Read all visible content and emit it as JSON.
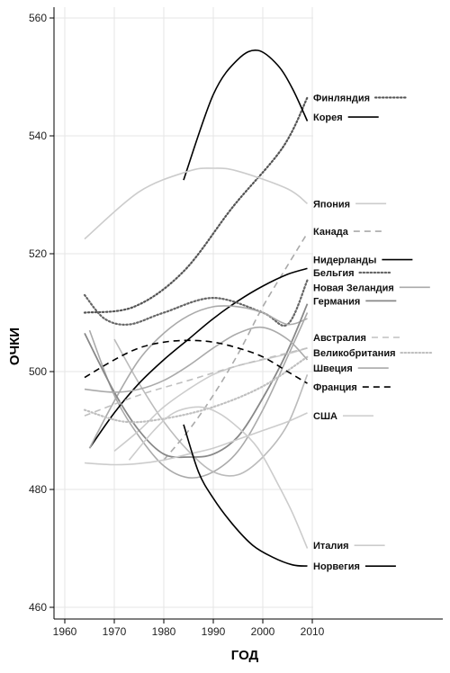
{
  "chart_data": {
    "type": "line",
    "xlabel": "ГОД",
    "ylabel": "ОЧКИ",
    "xlim": [
      1958,
      2010
    ],
    "ylim": [
      458,
      563
    ],
    "x_ticks": [
      1960,
      1970,
      1980,
      1990,
      2000,
      2010
    ],
    "y_ticks": [
      460,
      480,
      500,
      520,
      540,
      560
    ],
    "grid": true,
    "legend_placement": "right, labels at line ends",
    "series": [
      {
        "name": "Финляндия",
        "color": "#555555",
        "dash": "dotted",
        "width": 2.2,
        "x": [
          1964,
          1974,
          1984,
          1994,
          2004,
          2009
        ],
        "y": [
          510,
          511,
          517,
          528,
          538,
          546.5
        ]
      },
      {
        "name": "Корея",
        "color": "#000000",
        "dash": "solid",
        "width": 1.6,
        "x": [
          1984,
          1990,
          1995,
          1999,
          2003,
          2006,
          2009
        ],
        "y": [
          532.5,
          547,
          553,
          554.5,
          552,
          548,
          542.5
        ]
      },
      {
        "name": "Япония",
        "color": "#cccccc",
        "dash": "solid",
        "width": 1.6,
        "x": [
          1964,
          1975,
          1985,
          1990,
          1995,
          2005,
          2009
        ],
        "y": [
          522.5,
          530.5,
          534,
          534.5,
          534,
          531,
          528.5
        ]
      },
      {
        "name": "Канада",
        "color": "#aaaaaa",
        "dash": "dashed",
        "width": 1.6,
        "x": [
          1980,
          1985,
          1990,
          1995,
          2000,
          2005,
          2009
        ],
        "y": [
          485,
          490,
          496,
          503,
          511,
          518,
          523.5
        ]
      },
      {
        "name": "Нидерланды",
        "color": "#000000",
        "dash": "solid",
        "width": 1.6,
        "x": [
          1965,
          1970,
          1975,
          1980,
          1985,
          1990,
          1995,
          2000,
          2005,
          2009
        ],
        "y": [
          487,
          493,
          498,
          502,
          505.5,
          509,
          512,
          514.5,
          516.5,
          517.5
        ]
      },
      {
        "name": "Бельгия",
        "color": "#666666",
        "dash": "dotted",
        "width": 2.2,
        "x": [
          1964,
          1968,
          1973,
          1980,
          1990,
          2000,
          2005,
          2009
        ],
        "y": [
          513,
          509,
          508,
          510,
          512.5,
          510,
          508,
          515.5
        ]
      },
      {
        "name": "Новая Зеландия",
        "color": "#aaaaaa",
        "dash": "solid",
        "width": 1.6,
        "x": [
          1965,
          1970,
          1975,
          1980,
          1985,
          1990,
          1995,
          2000,
          2005,
          2009
        ],
        "y": [
          487,
          495,
          502,
          506.5,
          509.5,
          511,
          511,
          510,
          508,
          509
        ]
      },
      {
        "name": "Германия",
        "color": "#888888",
        "dash": "solid",
        "width": 1.8,
        "x": [
          1964,
          1970,
          1975,
          1980,
          1985,
          1990,
          1995,
          2000,
          2005,
          2009
        ],
        "y": [
          506.5,
          496.5,
          490,
          486,
          485.5,
          486,
          489,
          495.5,
          503.5,
          511.5
        ]
      },
      {
        "name": "Австралия",
        "color": "#c0c0c0",
        "dash": "dashed",
        "width": 1.6,
        "x": [
          1964,
          1975,
          1985,
          1995,
          2009
        ],
        "y": [
          492.5,
          496,
          498.5,
          501,
          504
        ]
      },
      {
        "name": "Великобритания",
        "color": "#c0c0c0",
        "dash": "dotted",
        "width": 2.2,
        "x": [
          1964,
          1972,
          1980,
          1990,
          2000,
          2009
        ],
        "y": [
          493.5,
          491.5,
          492,
          494,
          497.5,
          502.5
        ]
      },
      {
        "name": "Швеция",
        "color": "#aaaaaa",
        "dash": "solid",
        "width": 1.6,
        "x": [
          1964,
          1970,
          1975,
          1980,
          1985,
          1990,
          1995,
          2000,
          2005,
          2009
        ],
        "y": [
          497,
          496.5,
          497,
          498.5,
          501,
          504,
          506.5,
          507.5,
          505.5,
          502
        ]
      },
      {
        "name": "Франция",
        "color": "#000000",
        "dash": "dashed",
        "width": 1.6,
        "x": [
          1964,
          1970,
          1975,
          1980,
          1985,
          1990,
          1995,
          2000,
          2005,
          2009
        ],
        "y": [
          499,
          502,
          504,
          505,
          505.3,
          505,
          504,
          502.5,
          500,
          498
        ]
      },
      {
        "name": "США",
        "color": "#cccccc",
        "dash": "solid",
        "width": 1.6,
        "x": [
          1964,
          1970,
          1975,
          1980,
          1985,
          1990,
          1995,
          2000,
          2005,
          2009
        ],
        "y": [
          484.5,
          484.2,
          484.4,
          485,
          486,
          487,
          488.5,
          490,
          491.5,
          493
        ]
      },
      {
        "name": "Италия",
        "color": "#cccccc",
        "dash": "solid",
        "width": 1.6,
        "x": [
          1973,
          1978,
          1982,
          1987,
          1991,
          1995,
          1999,
          2003,
          2006,
          2009
        ],
        "y": [
          485,
          490,
          493,
          494,
          493,
          490.5,
          487,
          481,
          476,
          470
        ]
      },
      {
        "name": "Норвегия",
        "color": "#000000",
        "dash": "solid",
        "width": 1.6,
        "x": [
          1984,
          1987,
          1990,
          1994,
          1998,
          2002,
          2006,
          2009
        ],
        "y": [
          491,
          483,
          478.5,
          474,
          470.5,
          468.5,
          467.2,
          467
        ]
      }
    ],
    "extra_curves": [
      {
        "color": "#aaaaaa",
        "dash": "solid",
        "width": 1.6,
        "x": [
          1965,
          1970,
          1975,
          1980,
          1985,
          1990,
          1995,
          2000,
          2005,
          2009
        ],
        "y": [
          507,
          496,
          489,
          484,
          482,
          483,
          486.5,
          493.5,
          502.5,
          510
        ]
      },
      {
        "color": "#bbbbbb",
        "dash": "solid",
        "width": 1.6,
        "x": [
          1970,
          1975,
          1980,
          1985,
          1990,
          1995,
          2000,
          2005,
          2009
        ],
        "y": [
          505.5,
          498,
          491.5,
          486.5,
          483,
          482.5,
          485.5,
          491,
          499.5
        ]
      },
      {
        "color": "#cccccc",
        "dash": "solid",
        "width": 1.6,
        "x": [
          1970,
          1975,
          1980,
          1985,
          1990,
          1995,
          2000,
          2005,
          2009
        ],
        "y": [
          486.5,
          490,
          494,
          497,
          499.5,
          501,
          502,
          503,
          504
        ]
      }
    ]
  }
}
